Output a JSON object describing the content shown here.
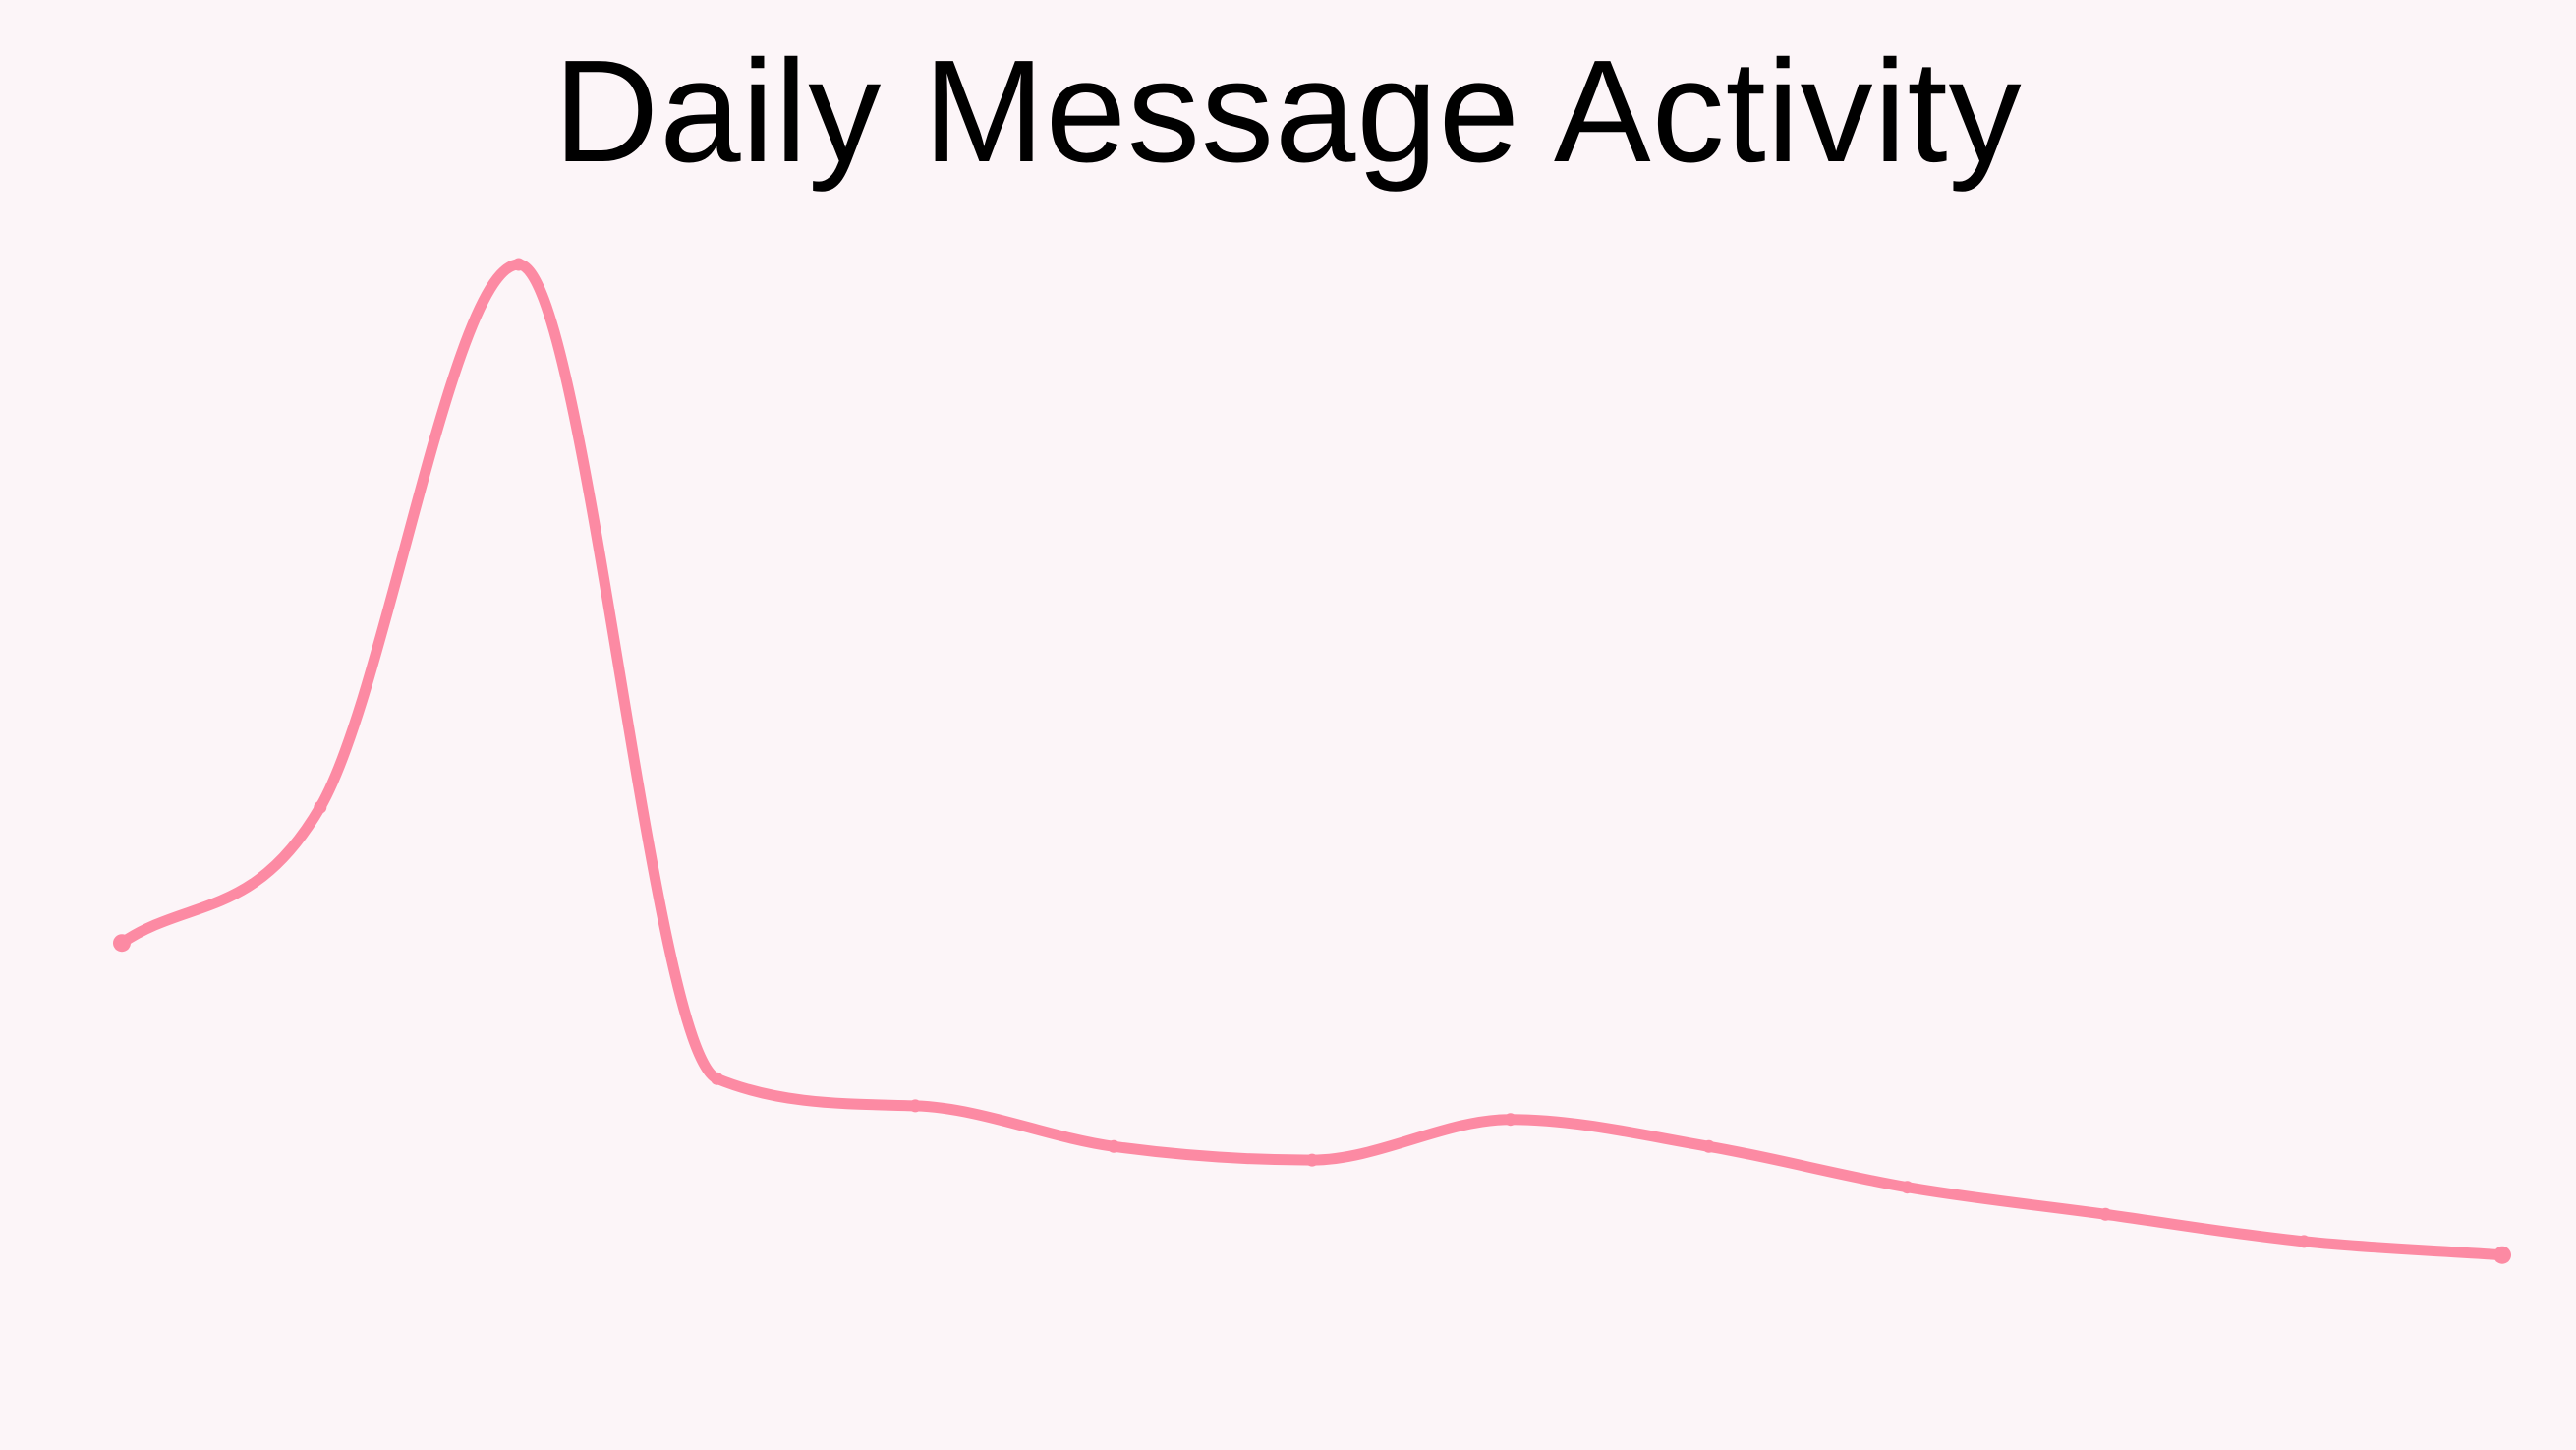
{
  "chart_data": {
    "type": "line",
    "title": "Daily Message Activity",
    "xlabel": "",
    "ylabel": "",
    "x": [
      1,
      2,
      3,
      4,
      5,
      6,
      7,
      8,
      9,
      10,
      11,
      12,
      13
    ],
    "series": [
      {
        "values": [
          57,
          67,
          107,
          47,
          45,
          42,
          41,
          44,
          42,
          39,
          37,
          35,
          34
        ],
        "color": "#fc8aa3"
      }
    ],
    "ylim": [
      20,
      112
    ],
    "grid": false,
    "axes_visible": false,
    "curve": "smooth"
  },
  "colors": {
    "background": "#fcf5f8",
    "line": "#fc8aa3",
    "title": "#000000"
  }
}
